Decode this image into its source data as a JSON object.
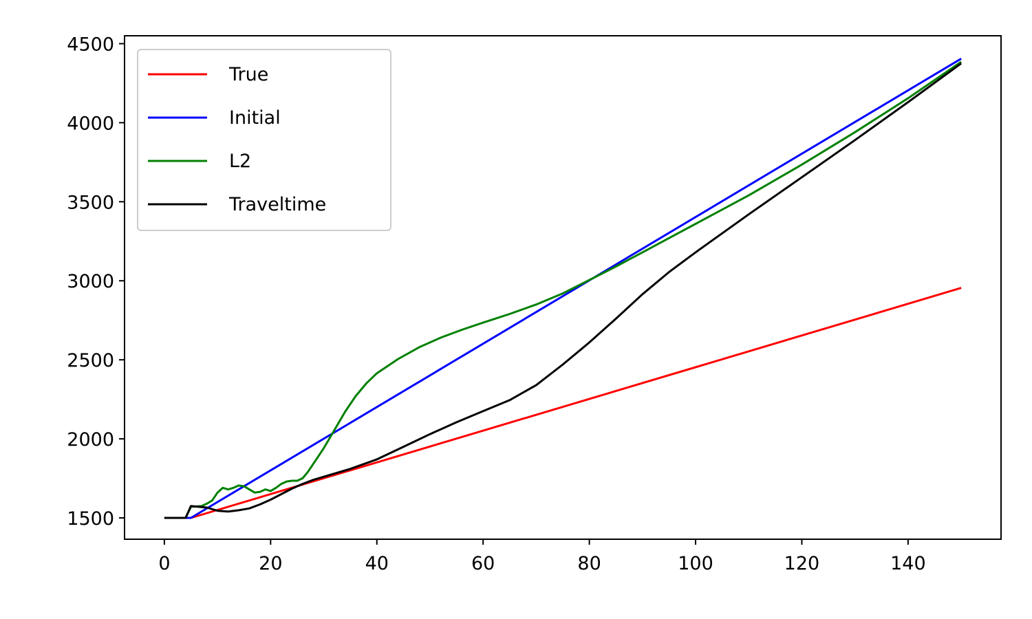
{
  "chart_data": {
    "type": "line",
    "title": "",
    "xlabel": "",
    "ylabel": "",
    "xlim": [
      -7.5,
      157.5
    ],
    "ylim": [
      1365,
      4550
    ],
    "xticks": [
      0,
      20,
      40,
      60,
      80,
      100,
      120,
      140
    ],
    "yticks": [
      1500,
      2000,
      2500,
      3000,
      3500,
      4000,
      4500
    ],
    "legend_position": "top-left",
    "series": [
      {
        "name": "True",
        "color": "#ff0000",
        "x": [
          0,
          5,
          150
        ],
        "y": [
          1500,
          1500,
          2955
        ]
      },
      {
        "name": "Initial",
        "color": "#0000ff",
        "x": [
          0,
          5,
          150
        ],
        "y": [
          1500,
          1500,
          4405
        ]
      },
      {
        "name": "L2",
        "color": "#008000",
        "x": [
          0,
          4,
          5,
          7,
          8,
          9,
          10,
          11,
          12,
          13,
          14,
          15,
          16,
          17,
          18,
          19,
          20,
          21,
          22,
          23,
          24,
          25,
          26,
          27,
          28,
          30,
          32,
          34,
          36,
          38,
          40,
          44,
          48,
          52,
          56,
          60,
          65,
          70,
          75,
          80,
          85,
          90,
          95,
          100,
          110,
          120,
          130,
          140,
          150
        ],
        "y": [
          1500,
          1500,
          1570,
          1575,
          1590,
          1610,
          1660,
          1690,
          1680,
          1690,
          1705,
          1700,
          1680,
          1660,
          1665,
          1680,
          1670,
          1690,
          1715,
          1730,
          1735,
          1735,
          1750,
          1790,
          1840,
          1940,
          2055,
          2170,
          2270,
          2350,
          2415,
          2505,
          2580,
          2640,
          2690,
          2735,
          2790,
          2850,
          2920,
          3005,
          3090,
          3180,
          3270,
          3360,
          3540,
          3735,
          3940,
          4155,
          4385
        ]
      },
      {
        "name": "Traveltime",
        "color": "#000000",
        "x": [
          0,
          4,
          5,
          8,
          10,
          12,
          14,
          16,
          18,
          20,
          22,
          24,
          26,
          28,
          30,
          35,
          40,
          45,
          50,
          55,
          60,
          65,
          70,
          75,
          80,
          85,
          90,
          95,
          100,
          110,
          120,
          130,
          140,
          150
        ],
        "y": [
          1500,
          1500,
          1575,
          1565,
          1545,
          1540,
          1548,
          1560,
          1585,
          1615,
          1650,
          1685,
          1715,
          1740,
          1760,
          1810,
          1870,
          1950,
          2030,
          2105,
          2175,
          2245,
          2340,
          2470,
          2610,
          2760,
          2915,
          3055,
          3180,
          3420,
          3655,
          3890,
          4130,
          4375
        ]
      }
    ]
  }
}
